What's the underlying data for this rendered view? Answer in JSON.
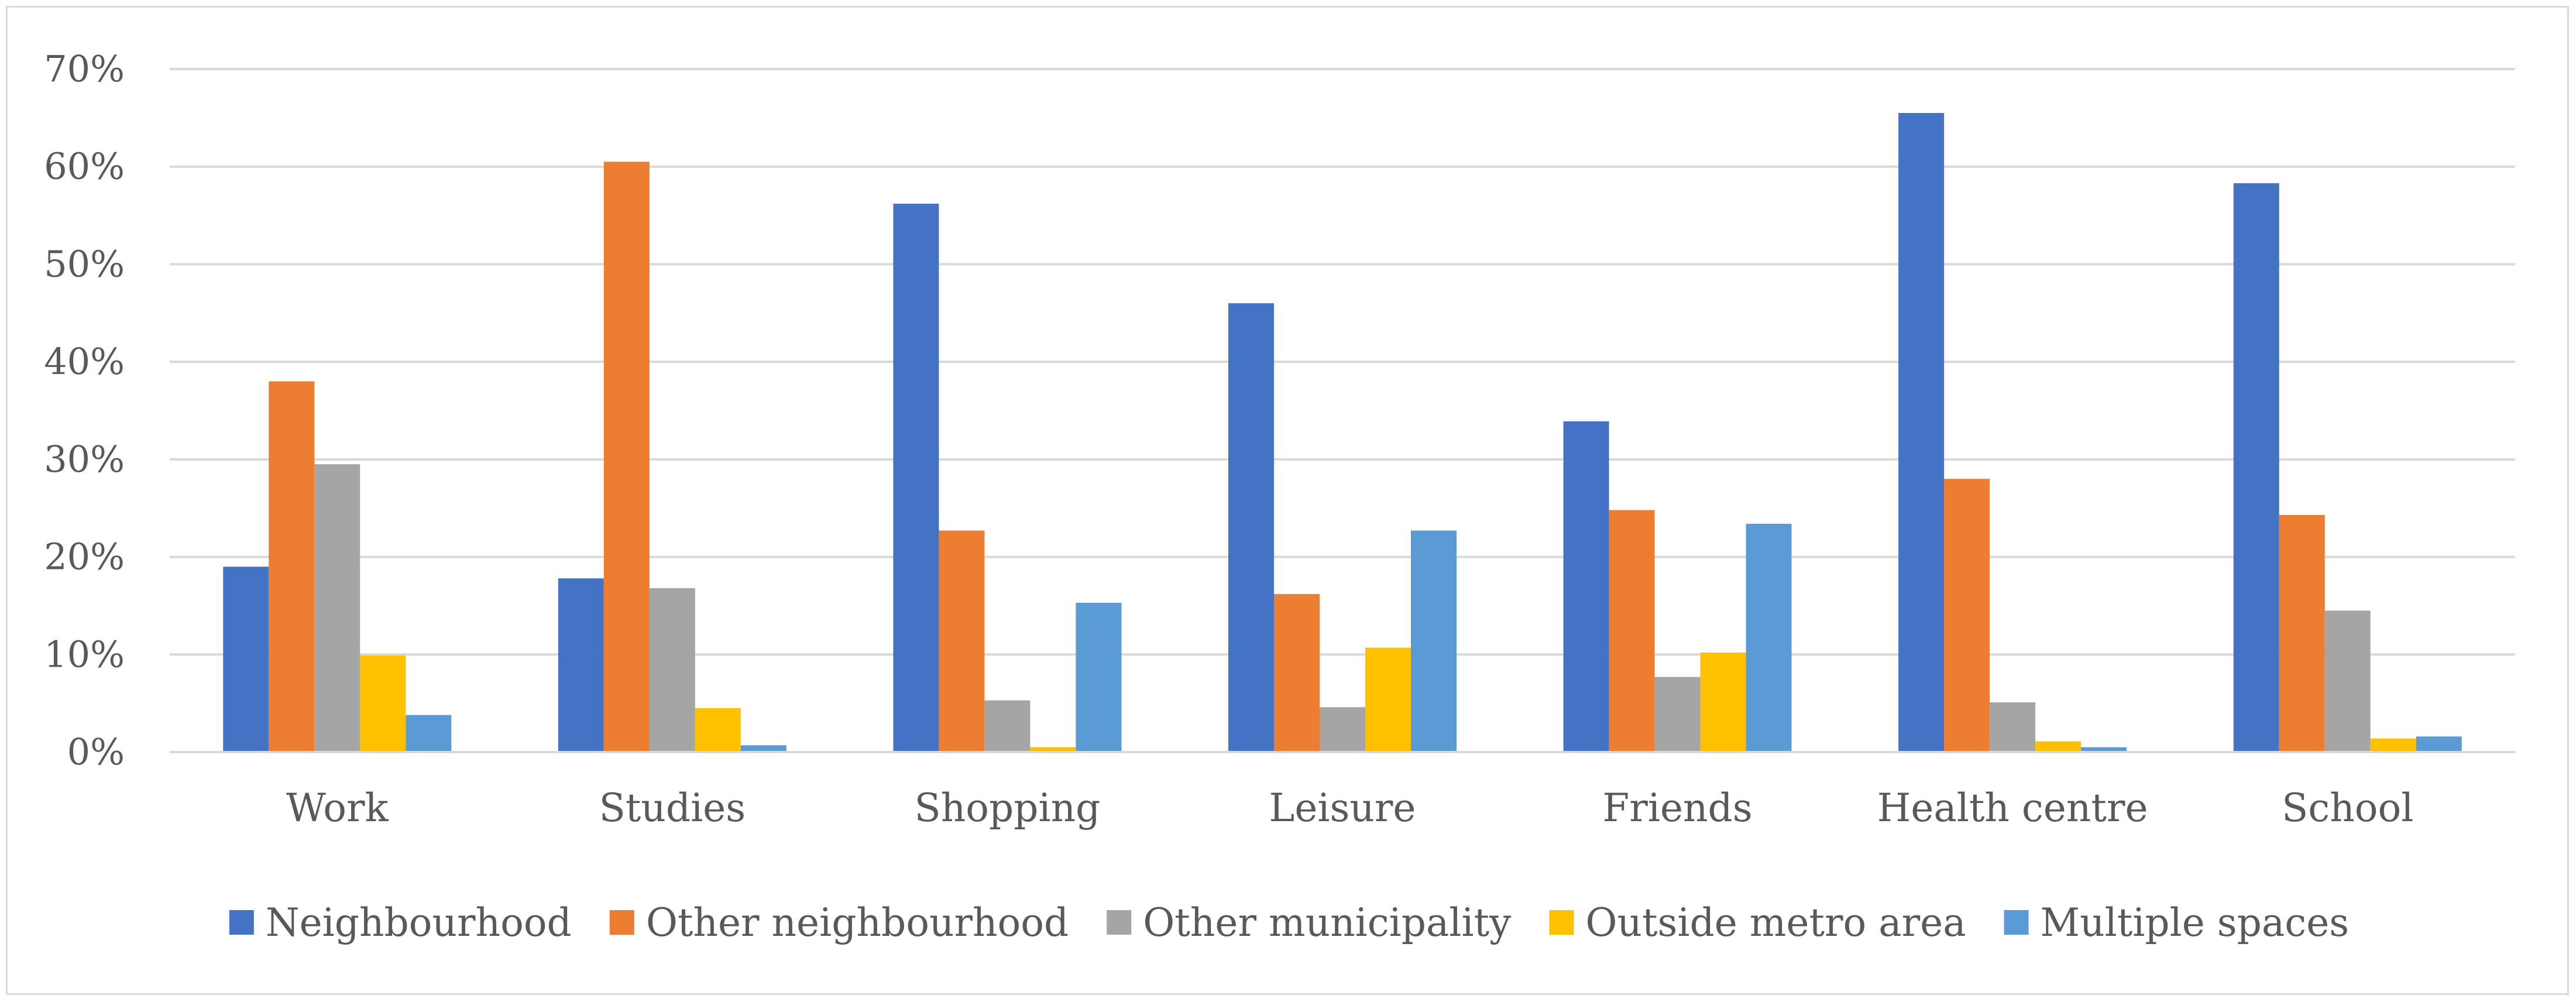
{
  "chart_data": {
    "type": "bar",
    "title": "",
    "xlabel": "",
    "ylabel": "",
    "categories": [
      "Work",
      "Studies",
      "Shopping",
      "Leisure",
      "Friends",
      "Health centre",
      "School"
    ],
    "series": [
      {
        "name": "Neighbourhood",
        "color": "#4472c4",
        "values": [
          19,
          17.8,
          56.2,
          46,
          33.9,
          65.5,
          58.3
        ]
      },
      {
        "name": "Other neighbourhood",
        "color": "#ed7d31",
        "values": [
          38,
          60.5,
          22.7,
          16.2,
          24.8,
          28,
          24.3
        ]
      },
      {
        "name": "Other municipality",
        "color": "#a5a5a5",
        "values": [
          29.5,
          16.8,
          5.3,
          4.6,
          7.7,
          5.1,
          14.5
        ]
      },
      {
        "name": "Outside metro area",
        "color": "#ffc000",
        "values": [
          9.9,
          4.5,
          0.5,
          10.7,
          10.2,
          1.1,
          1.4
        ]
      },
      {
        "name": "Multiple spaces",
        "color": "#5b9bd5",
        "values": [
          3.8,
          0.7,
          15.3,
          22.7,
          23.4,
          0.5,
          1.6
        ]
      }
    ],
    "ylim": [
      0,
      70
    ],
    "yticks": [
      0,
      10,
      20,
      30,
      40,
      50,
      60,
      70
    ],
    "ytick_labels": [
      "0%",
      "10%",
      "20%",
      "30%",
      "40%",
      "50%",
      "60%",
      "70%"
    ],
    "grid": true,
    "legend_position": "bottom"
  }
}
